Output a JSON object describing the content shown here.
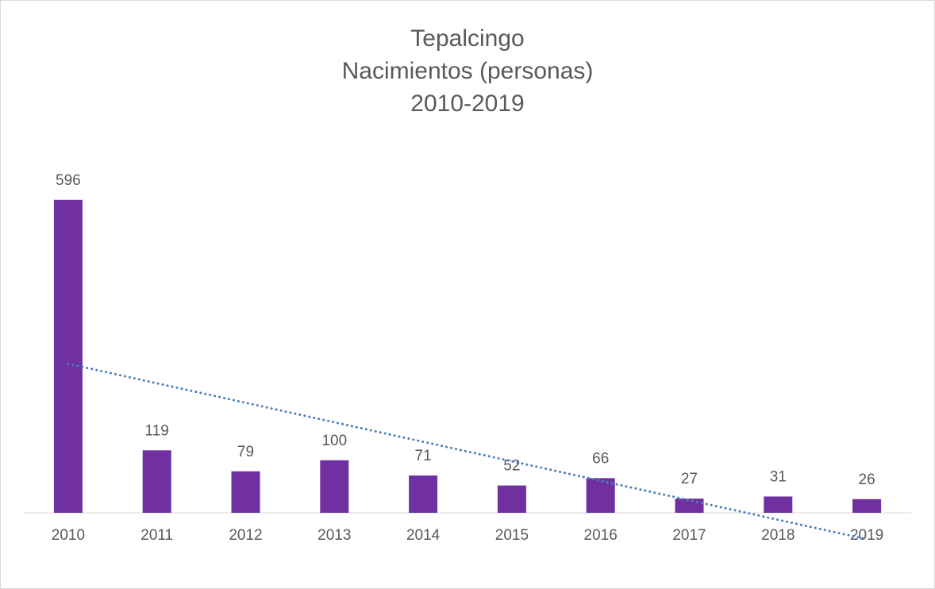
{
  "chart_data": {
    "type": "bar",
    "title": [
      "Tepalcingo",
      "Nacimientos (personas)",
      "2010-2019"
    ],
    "categories": [
      "2010",
      "2011",
      "2012",
      "2013",
      "2014",
      "2015",
      "2016",
      "2017",
      "2018",
      "2019"
    ],
    "values": [
      596,
      119,
      79,
      100,
      71,
      52,
      66,
      27,
      31,
      26
    ],
    "color": "#7030a0",
    "ylim": [
      0,
      700
    ],
    "trendline": {
      "kind": "linear",
      "color": "#4a7ebb"
    },
    "data_labels": true
  }
}
